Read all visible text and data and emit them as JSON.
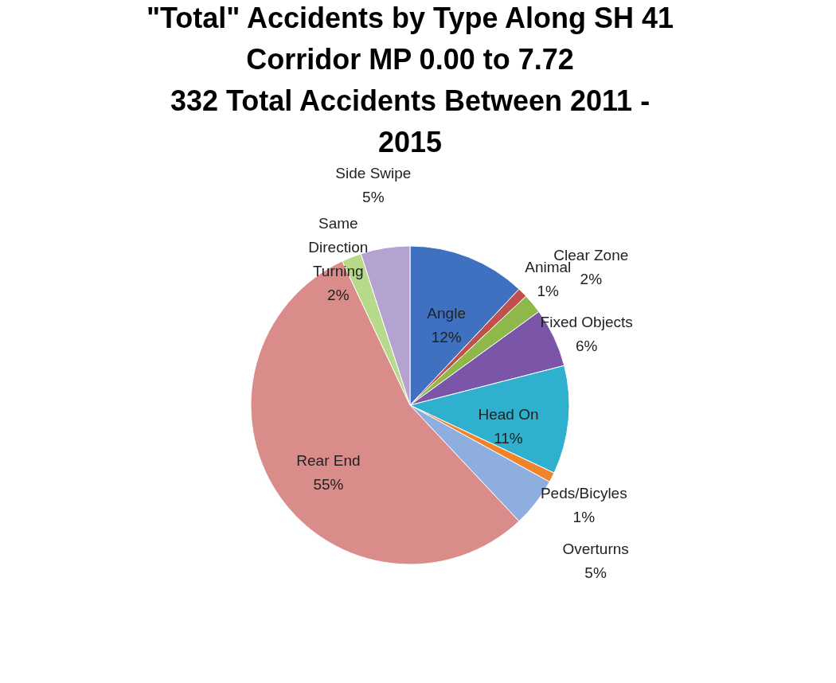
{
  "chart_data": {
    "type": "pie",
    "title": [
      "\"Total\" Accidents by Type Along SH 41",
      "Corridor MP 0.00 to 7.72",
      "332 Total Accidents Between 2011 -",
      "2015"
    ],
    "categories": [
      "Angle",
      "Animal",
      "Clear Zone",
      "Fixed Objects",
      "Head On",
      "Peds/Bicyles",
      "Overturns",
      "Rear End",
      "Same Direction Turning",
      "Side Swipe"
    ],
    "values": [
      12,
      1,
      2,
      6,
      11,
      1,
      5,
      55,
      2,
      5
    ],
    "value_labels": [
      "12%",
      "1%",
      "2%",
      "6%",
      "11%",
      "1%",
      "5%",
      "55%",
      "2%",
      "5%"
    ],
    "colors": [
      "#3f71c0",
      "#c0504d",
      "#8fb84a",
      "#7b55a8",
      "#2fb0cf",
      "#f0842a",
      "#8faee0",
      "#d98c89",
      "#b7d98a",
      "#b4a2d0"
    ],
    "legend": false
  }
}
